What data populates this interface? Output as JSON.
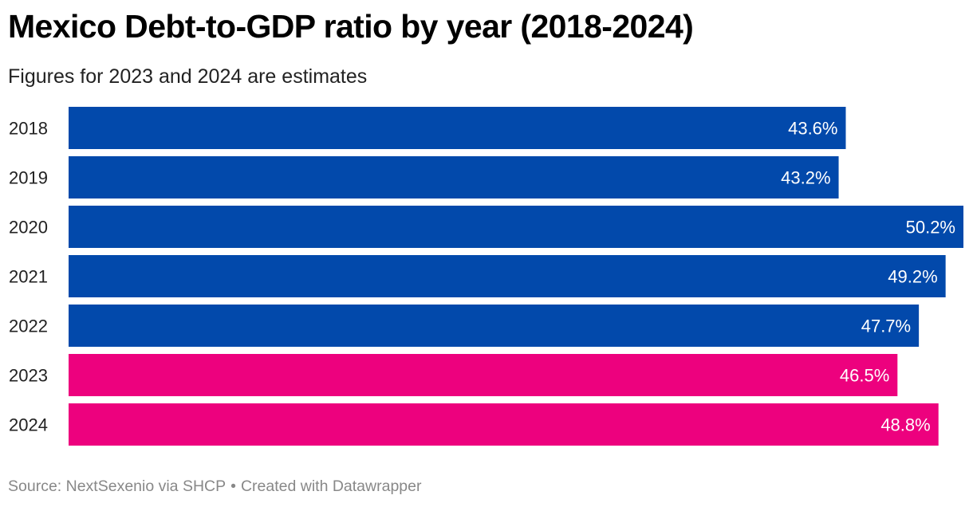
{
  "header": {
    "title": "Mexico Debt-to-GDP ratio by year (2018-2024)",
    "subtitle": "Figures for 2023 and 2024 are estimates"
  },
  "footer": {
    "source": "Source: NextSexenio via SHCP",
    "separator": "•",
    "credit": "Created with Datawrapper"
  },
  "colors": {
    "actual": "#0249ab",
    "estimate": "#ed017e",
    "label_text": "#ffffff"
  },
  "chart_data": {
    "type": "bar",
    "orientation": "horizontal",
    "title": "Mexico Debt-to-GDP ratio by year (2018-2024)",
    "subtitle": "Figures for 2023 and 2024 are estimates",
    "xlabel": "",
    "ylabel": "",
    "categories": [
      "2018",
      "2019",
      "2020",
      "2021",
      "2022",
      "2023",
      "2024"
    ],
    "values": [
      43.6,
      43.2,
      50.2,
      49.2,
      47.7,
      46.5,
      48.8
    ],
    "value_labels": [
      "43.6%",
      "43.2%",
      "50.2%",
      "49.2%",
      "47.7%",
      "46.5%",
      "48.8%"
    ],
    "estimate": [
      false,
      false,
      false,
      false,
      false,
      true,
      true
    ],
    "unit": "%",
    "xlim": [
      0,
      50.2
    ],
    "grid": false,
    "legend": "none"
  }
}
